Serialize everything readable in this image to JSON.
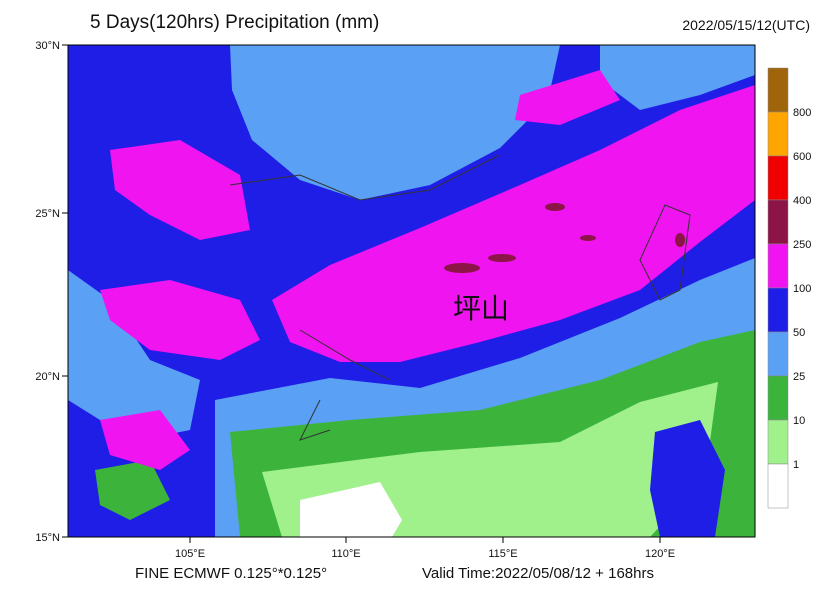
{
  "header": {
    "title": "5 Days(120hrs) Precipitation (mm)",
    "date": "2022/05/15/12(UTC)"
  },
  "axes": {
    "latitudes": [
      "30°N",
      "25°N",
      "20°N",
      "15°N"
    ],
    "longitudes": [
      "105°E",
      "110°E",
      "115°E",
      "120°E"
    ]
  },
  "legend": [
    {
      "color": "#a0640a",
      "label": "800"
    },
    {
      "color": "#ffa500",
      "label": "600"
    },
    {
      "color": "#f00000",
      "label": "400"
    },
    {
      "color": "#8c1446",
      "label": "250"
    },
    {
      "color": "#f014f0",
      "label": "100"
    },
    {
      "color": "#1e1ee6",
      "label": "50"
    },
    {
      "color": "#5aa0f5",
      "label": "25"
    },
    {
      "color": "#3cb43c",
      "label": "10"
    },
    {
      "color": "#a0f08c",
      "label": "1"
    },
    {
      "color": "#ffffff"
    }
  ],
  "place_label": "坪山",
  "footer": {
    "model": "FINE ECMWF 0.125°*0.125°",
    "valid_time": "Valid Time:2022/05/08/12 + 168hrs"
  }
}
